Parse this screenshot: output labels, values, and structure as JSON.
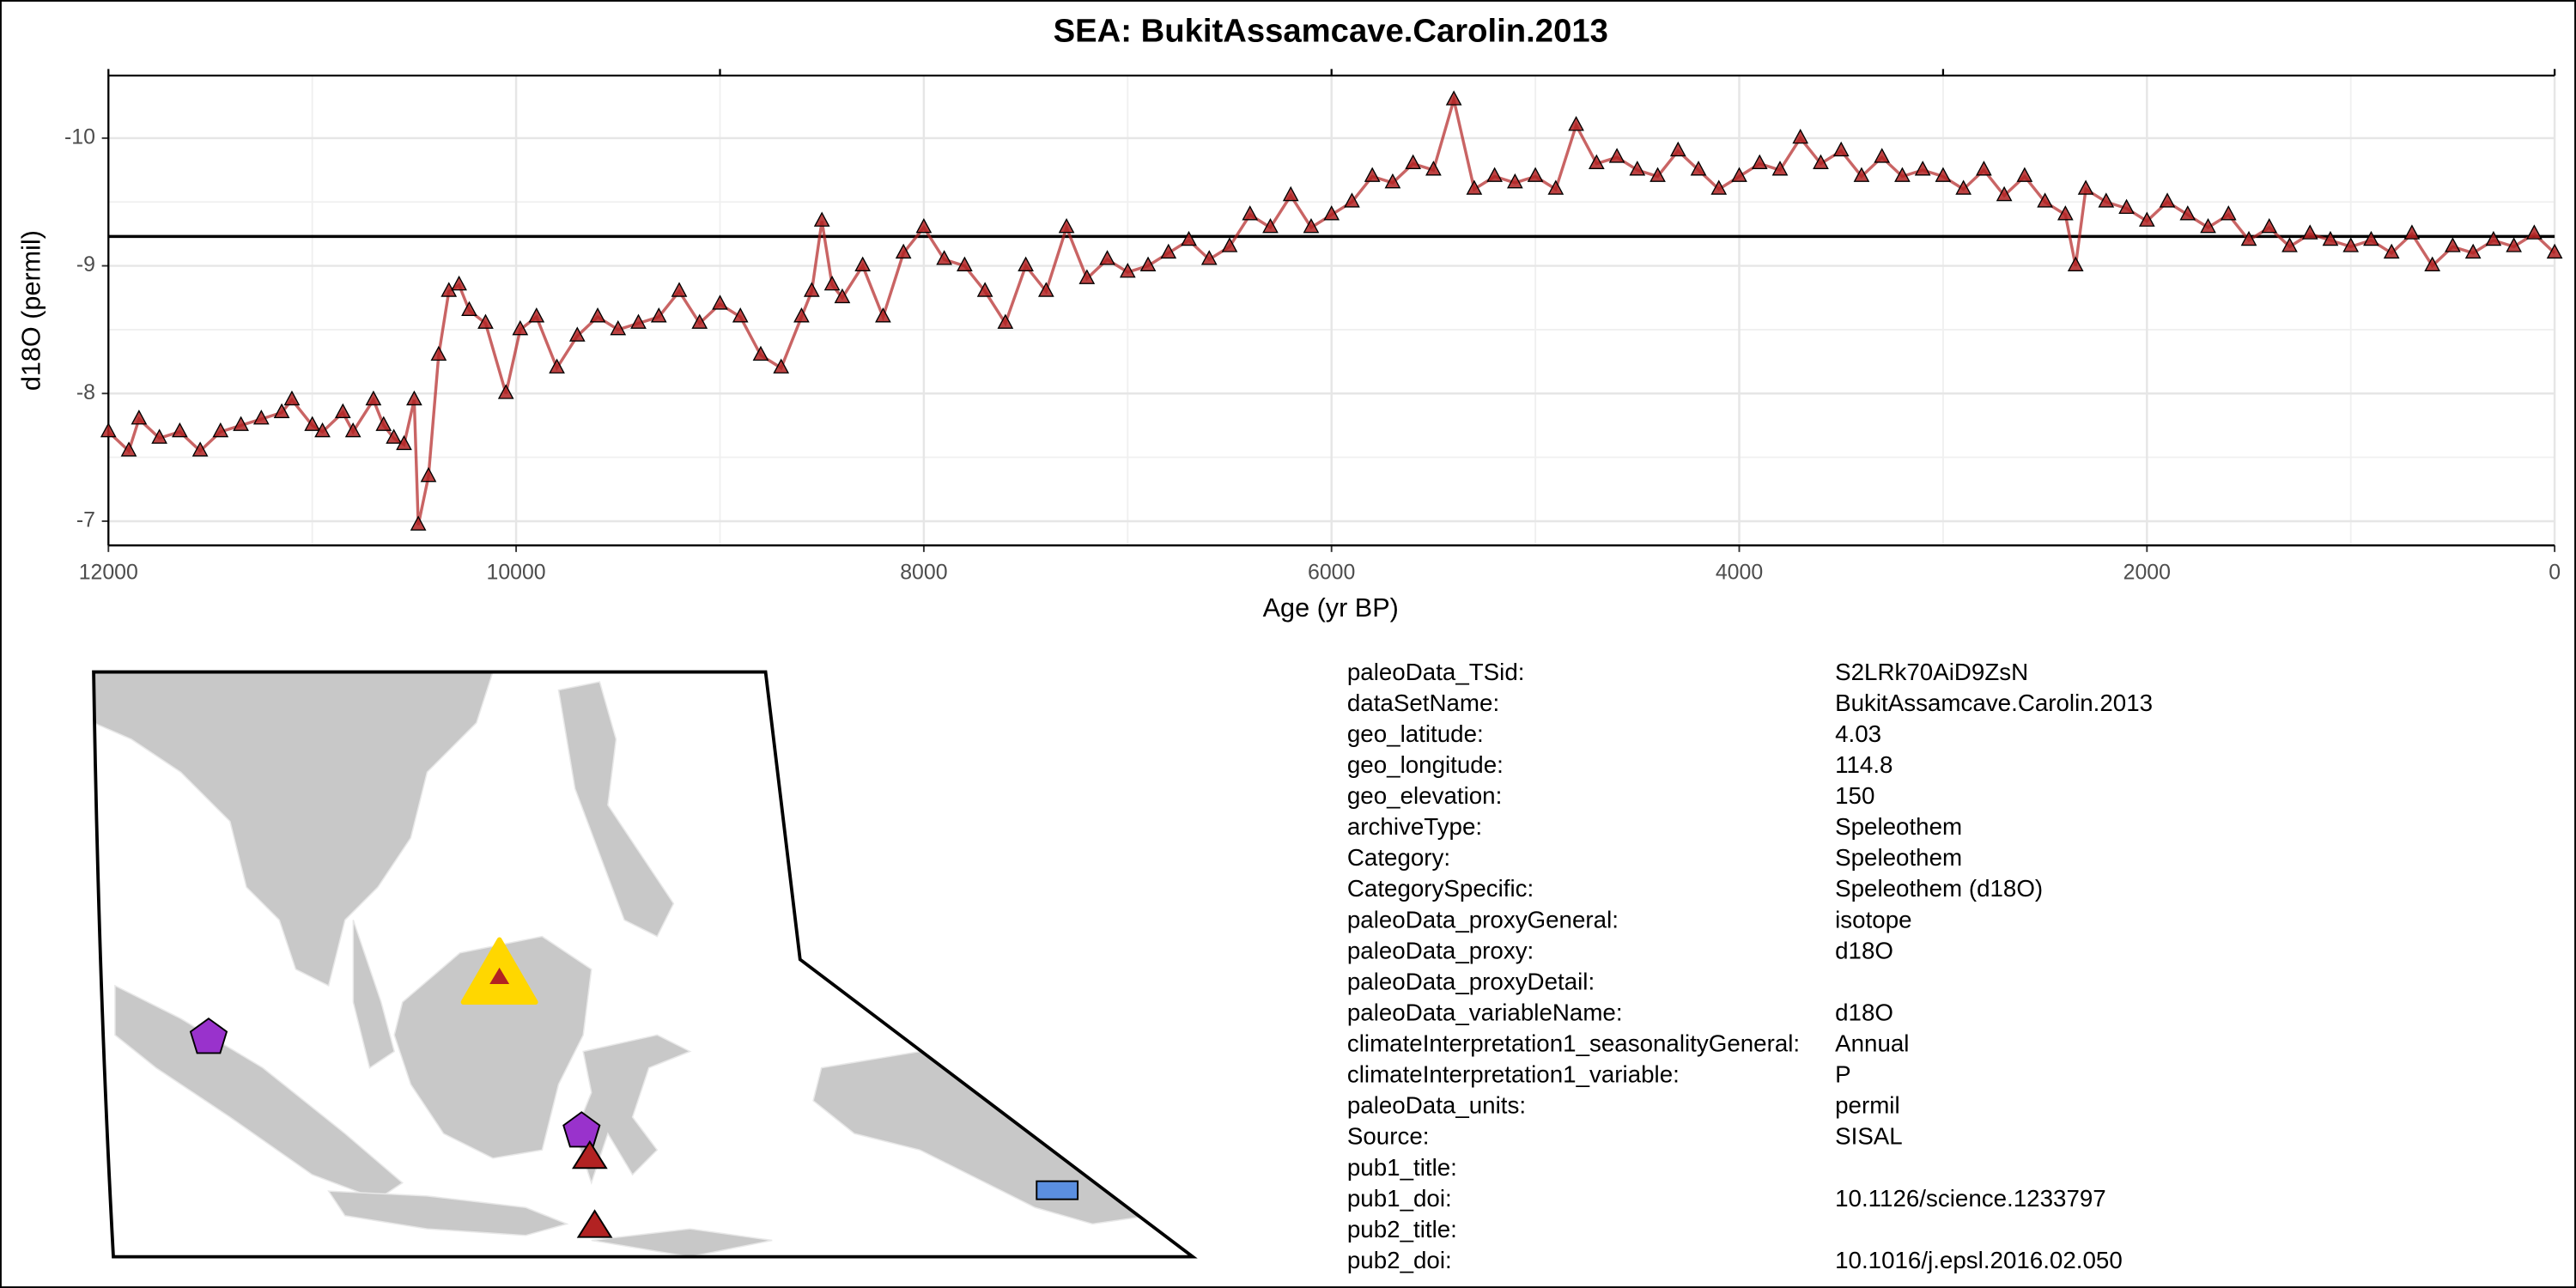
{
  "chart_data": {
    "type": "line",
    "title": "SEA: BukitAssamcave.Carolin.2013",
    "x_label": "Age (yr BP)",
    "y_label": "d18O (permil)",
    "xlim": [
      12000,
      0
    ],
    "ylim": [
      -6.81,
      -10.49
    ],
    "xticks": [
      12000,
      10000,
      8000,
      6000,
      4000,
      2000,
      0
    ],
    "yticks": [
      -10,
      -9,
      -8,
      -7
    ],
    "top_ticks": [
      12000,
      9000,
      6000,
      3000,
      0
    ],
    "hline": -9.23,
    "grid": true,
    "series": [
      {
        "name": "d18O",
        "color": "#b22222",
        "x": [
          12000,
          11900,
          11850,
          11750,
          11650,
          11550,
          11450,
          11350,
          11250,
          11150,
          11100,
          11000,
          10950,
          10850,
          10800,
          10700,
          10650,
          10600,
          10550,
          10500,
          10480,
          10430,
          10380,
          10330,
          10280,
          10230,
          10150,
          10050,
          9980,
          9900,
          9800,
          9700,
          9600,
          9500,
          9400,
          9300,
          9200,
          9100,
          9000,
          8900,
          8800,
          8700,
          8600,
          8550,
          8500,
          8450,
          8400,
          8300,
          8200,
          8100,
          8000,
          7900,
          7800,
          7700,
          7600,
          7500,
          7400,
          7300,
          7200,
          7100,
          7000,
          6900,
          6800,
          6700,
          6600,
          6500,
          6400,
          6300,
          6200,
          6100,
          6000,
          5900,
          5800,
          5700,
          5600,
          5500,
          5400,
          5300,
          5200,
          5100,
          5000,
          4900,
          4800,
          4700,
          4600,
          4500,
          4400,
          4300,
          4200,
          4100,
          4000,
          3900,
          3800,
          3700,
          3600,
          3500,
          3400,
          3300,
          3200,
          3100,
          3000,
          2900,
          2800,
          2700,
          2600,
          2500,
          2400,
          2350,
          2300,
          2200,
          2100,
          2000,
          1900,
          1800,
          1700,
          1600,
          1500,
          1400,
          1300,
          1200,
          1100,
          1000,
          900,
          800,
          700,
          600,
          500,
          400,
          300,
          200,
          100,
          0
        ],
        "values": [
          -7.7,
          -7.55,
          -7.8,
          -7.65,
          -7.7,
          -7.55,
          -7.7,
          -7.75,
          -7.8,
          -7.85,
          -7.95,
          -7.75,
          -7.7,
          -7.85,
          -7.7,
          -7.95,
          -7.75,
          -7.65,
          -7.6,
          -7.95,
          -6.97,
          -7.35,
          -8.3,
          -8.8,
          -8.85,
          -8.65,
          -8.55,
          -8.0,
          -8.5,
          -8.6,
          -8.2,
          -8.45,
          -8.6,
          -8.5,
          -8.55,
          -8.6,
          -8.8,
          -8.55,
          -8.7,
          -8.6,
          -8.3,
          -8.2,
          -8.6,
          -8.8,
          -9.35,
          -8.85,
          -8.75,
          -9.0,
          -8.6,
          -9.1,
          -9.3,
          -9.05,
          -9.0,
          -8.8,
          -8.55,
          -9.0,
          -8.8,
          -9.3,
          -8.9,
          -9.05,
          -8.95,
          -9.0,
          -9.1,
          -9.2,
          -9.05,
          -9.15,
          -9.4,
          -9.3,
          -9.55,
          -9.3,
          -9.4,
          -9.5,
          -9.7,
          -9.65,
          -9.8,
          -9.75,
          -10.3,
          -9.6,
          -9.7,
          -9.65,
          -9.7,
          -9.6,
          -10.1,
          -9.8,
          -9.85,
          -9.75,
          -9.7,
          -9.9,
          -9.75,
          -9.6,
          -9.7,
          -9.8,
          -9.75,
          -10.0,
          -9.8,
          -9.9,
          -9.7,
          -9.85,
          -9.7,
          -9.75,
          -9.7,
          -9.6,
          -9.75,
          -9.55,
          -9.7,
          -9.5,
          -9.4,
          -9.0,
          -9.6,
          -9.5,
          -9.45,
          -9.35,
          -9.5,
          -9.4,
          -9.3,
          -9.4,
          -9.2,
          -9.3,
          -9.15,
          -9.25,
          -9.2,
          -9.15,
          -9.2,
          -9.1,
          -9.25,
          -9.0,
          -9.15,
          -9.1,
          -9.2,
          -9.15,
          -9.25,
          -9.1
        ]
      }
    ]
  },
  "metadata": {
    "rows": [
      [
        "paleoData_TSid:",
        "S2LRk70AiD9ZsN"
      ],
      [
        "dataSetName:",
        "BukitAssamcave.Carolin.2013"
      ],
      [
        "geo_latitude:",
        "4.03"
      ],
      [
        "geo_longitude:",
        "114.8"
      ],
      [
        "geo_elevation:",
        "150"
      ],
      [
        "archiveType:",
        "Speleothem"
      ],
      [
        "Category:",
        "Speleothem"
      ],
      [
        "CategorySpecific:",
        "Speleothem (d18O)"
      ],
      [
        "paleoData_proxyGeneral:",
        "isotope"
      ],
      [
        "paleoData_proxy:",
        "d18O"
      ],
      [
        "paleoData_proxyDetail:",
        null
      ],
      [
        "paleoData_variableName:",
        "d18O"
      ],
      [
        "climateInterpretation1_seasonalityGeneral:",
        "Annual"
      ],
      [
        "climateInterpretation1_variable:",
        "P"
      ],
      [
        "paleoData_units:",
        "permil"
      ],
      [
        "Source:",
        "SISAL"
      ],
      [
        "pub1_title:",
        null
      ],
      [
        "pub1_doi:",
        "10.1126/science.1233797"
      ],
      [
        "pub2_title:",
        null
      ],
      [
        "pub2_doi:",
        "10.1016/j.epsl.2016.02.050"
      ]
    ]
  }
}
